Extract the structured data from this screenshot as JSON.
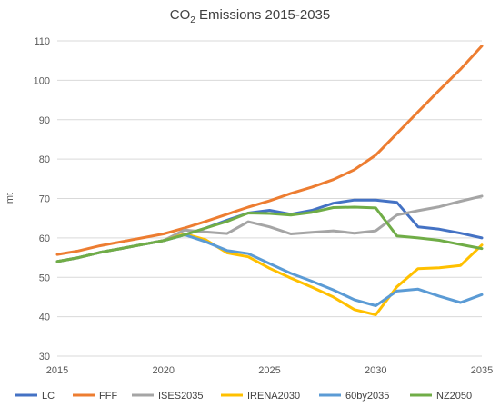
{
  "chart_data": {
    "type": "line",
    "title_main": "CO",
    "title_sub": "2",
    "title_rest": " Emissions 2015-2035",
    "xlabel": "",
    "ylabel": "mt",
    "xlim": [
      2015,
      2035
    ],
    "ylim": [
      30,
      110
    ],
    "x_ticks": [
      "2015",
      "2020",
      "2025",
      "2030",
      "2035"
    ],
    "y_ticks": [
      "30",
      "40",
      "50",
      "60",
      "70",
      "80",
      "90",
      "100",
      "110"
    ],
    "grid": "horizontal",
    "legend_position": "bottom",
    "x": [
      2015,
      2016,
      2017,
      2018,
      2019,
      2020,
      2021,
      2022,
      2023,
      2024,
      2025,
      2026,
      2027,
      2028,
      2029,
      2030,
      2031,
      2032,
      2033,
      2034,
      2035
    ],
    "series": [
      {
        "name": "LC",
        "color": "#4472C4",
        "values": [
          54,
          55,
          56.3,
          57.3,
          58.3,
          59.3,
          60.8,
          62.5,
          64.5,
          66.3,
          67,
          66,
          67,
          68.8,
          69.6,
          69.6,
          69,
          62.8,
          62.2,
          61.2,
          60
        ]
      },
      {
        "name": "FFF",
        "color": "#ED7D31",
        "values": [
          55.8,
          56.7,
          58,
          59,
          60,
          61,
          62.5,
          64.2,
          66,
          67.8,
          69.4,
          71.3,
          72.9,
          74.8,
          77.3,
          81,
          86.5,
          92,
          97.5,
          102.8,
          108.7
        ]
      },
      {
        "name": "ISES2035",
        "color": "#A5A5A5",
        "values": [
          54,
          55,
          56.3,
          57.3,
          58.3,
          59.3,
          62,
          61.5,
          61.1,
          64.1,
          62.8,
          61,
          61.4,
          61.8,
          61.2,
          61.8,
          65.8,
          66.9,
          67.9,
          69.3,
          70.6
        ]
      },
      {
        "name": "IRENA2030",
        "color": "#FFC000",
        "values": [
          54,
          55,
          56.3,
          57.3,
          58.3,
          59.3,
          61,
          59.5,
          56.2,
          55.2,
          52.3,
          49.8,
          47.5,
          45,
          41.8,
          40.5,
          47.6,
          52.2,
          52.4,
          53,
          58.2
        ]
      },
      {
        "name": "60by2035",
        "color": "#5B9BD5",
        "values": [
          54,
          55,
          56.3,
          57.3,
          58.3,
          59.3,
          60.8,
          59,
          56.8,
          56,
          53.5,
          51,
          49,
          46.8,
          44.3,
          42.8,
          46.5,
          47,
          45.2,
          43.6,
          45.6
        ]
      },
      {
        "name": "NZ2050",
        "color": "#70AD47",
        "values": [
          54,
          55,
          56.3,
          57.3,
          58.3,
          59.3,
          60.8,
          62.5,
          64.2,
          66.3,
          66.2,
          65.8,
          66.5,
          67.7,
          67.8,
          67.6,
          60.5,
          60,
          59.4,
          58.3,
          57.3
        ]
      }
    ]
  }
}
